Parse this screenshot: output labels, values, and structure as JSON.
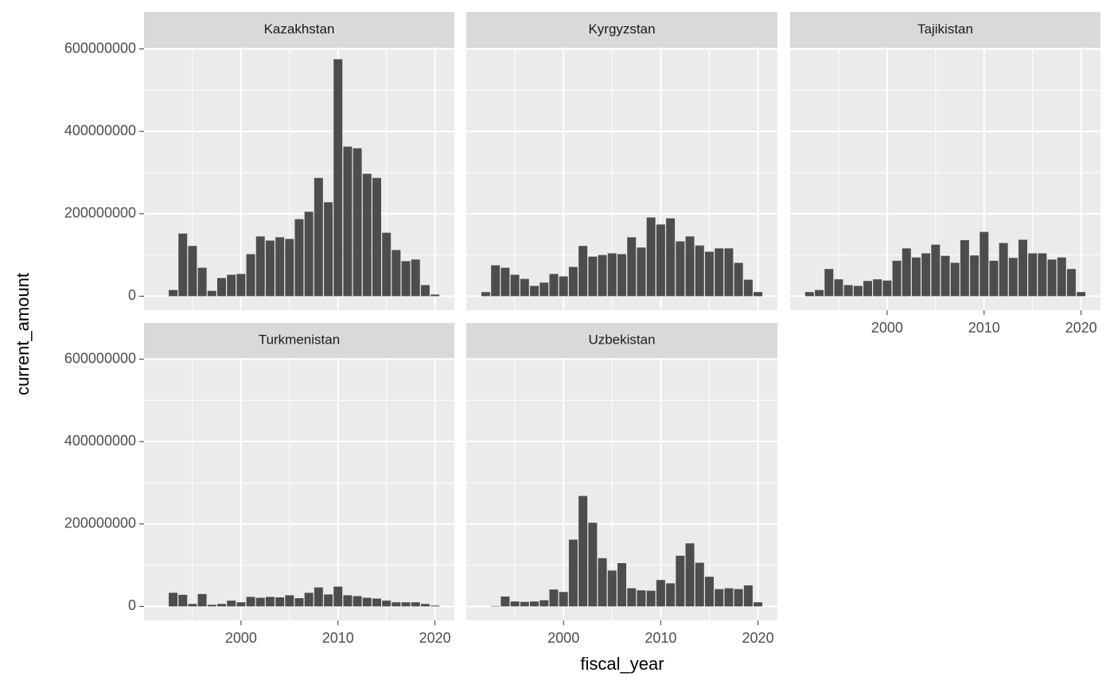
{
  "xlabel": "fiscal_year",
  "ylabel": "current_amount",
  "chart_data": [
    {
      "type": "bar",
      "title": "Kazakhstan",
      "color": "#4d4d4d",
      "grid": true,
      "x": [
        1993,
        1994,
        1995,
        1996,
        1997,
        1998,
        1999,
        2000,
        2001,
        2002,
        2003,
        2004,
        2005,
        2006,
        2007,
        2008,
        2009,
        2010,
        2011,
        2012,
        2013,
        2014,
        2015,
        2016,
        2017,
        2018,
        2019,
        2020
      ],
      "values": [
        15000000,
        152000000,
        122000000,
        69000000,
        13000000,
        44000000,
        52000000,
        54000000,
        102000000,
        145000000,
        135000000,
        143000000,
        139000000,
        187000000,
        205000000,
        287000000,
        228000000,
        575000000,
        363000000,
        359000000,
        297000000,
        287000000,
        154000000,
        112000000,
        85000000,
        89000000,
        27000000,
        4000000
      ],
      "xlim": [
        1990,
        2022
      ],
      "ylim": [
        -34000000,
        603000000
      ],
      "xticks": [
        2000,
        2010,
        2020
      ],
      "yticks": [
        0,
        200000000,
        400000000,
        600000000
      ]
    },
    {
      "type": "bar",
      "title": "Kyrgyzstan",
      "color": "#4d4d4d",
      "grid": true,
      "x": [
        1992,
        1993,
        1994,
        1995,
        1996,
        1997,
        1998,
        1999,
        2000,
        2001,
        2002,
        2003,
        2004,
        2005,
        2006,
        2007,
        2008,
        2009,
        2010,
        2011,
        2012,
        2013,
        2014,
        2015,
        2016,
        2017,
        2018,
        2019,
        2020
      ],
      "values": [
        10000000,
        75000000,
        69000000,
        52000000,
        42000000,
        25000000,
        33000000,
        54000000,
        48000000,
        71000000,
        122000000,
        96000000,
        100000000,
        104000000,
        102000000,
        143000000,
        118000000,
        191000000,
        174000000,
        189000000,
        133000000,
        145000000,
        123000000,
        108000000,
        116000000,
        116000000,
        81000000,
        40000000,
        10000000
      ],
      "xlim": [
        1990,
        2022
      ],
      "ylim": [
        -34000000,
        603000000
      ],
      "xticks": [
        2000,
        2010,
        2020
      ],
      "yticks": [
        0,
        200000000,
        400000000,
        600000000
      ]
    },
    {
      "type": "bar",
      "title": "Tajikistan",
      "color": "#4d4d4d",
      "grid": true,
      "x": [
        1992,
        1993,
        1994,
        1995,
        1996,
        1997,
        1998,
        1999,
        2000,
        2001,
        2002,
        2003,
        2004,
        2005,
        2006,
        2007,
        2008,
        2009,
        2010,
        2011,
        2012,
        2013,
        2014,
        2015,
        2016,
        2017,
        2018,
        2019,
        2020
      ],
      "values": [
        10000000,
        15000000,
        66000000,
        41000000,
        27000000,
        25000000,
        37000000,
        41000000,
        38000000,
        86000000,
        116000000,
        94000000,
        104000000,
        125000000,
        98000000,
        81000000,
        136000000,
        99000000,
        156000000,
        86000000,
        129000000,
        93000000,
        137000000,
        104000000,
        104000000,
        89000000,
        94000000,
        66000000,
        10000000
      ],
      "xlim": [
        1990,
        2022
      ],
      "ylim": [
        -34000000,
        603000000
      ],
      "xticks": [
        2000,
        2010,
        2020
      ],
      "yticks": [
        0,
        200000000,
        400000000,
        600000000
      ]
    },
    {
      "type": "bar",
      "title": "Turkmenistan",
      "color": "#4d4d4d",
      "grid": true,
      "x": [
        1993,
        1994,
        1995,
        1996,
        1997,
        1998,
        1999,
        2000,
        2001,
        2002,
        2003,
        2004,
        2005,
        2006,
        2007,
        2008,
        2009,
        2010,
        2011,
        2012,
        2013,
        2014,
        2015,
        2016,
        2017,
        2018,
        2019,
        2020
      ],
      "values": [
        33000000,
        28000000,
        6000000,
        30000000,
        4000000,
        6000000,
        14000000,
        10000000,
        23000000,
        21000000,
        23000000,
        22000000,
        27000000,
        20000000,
        33000000,
        46000000,
        29000000,
        48000000,
        27000000,
        25000000,
        21000000,
        19000000,
        14000000,
        10000000,
        10000000,
        10000000,
        6000000,
        2000000
      ],
      "xlim": [
        1990,
        2022
      ],
      "ylim": [
        -34000000,
        603000000
      ],
      "xticks": [
        2000,
        2010,
        2020
      ],
      "yticks": [
        0,
        200000000,
        400000000,
        600000000
      ]
    },
    {
      "type": "bar",
      "title": "Uzbekistan",
      "color": "#4d4d4d",
      "grid": true,
      "x": [
        1993,
        1994,
        1995,
        1996,
        1997,
        1998,
        1999,
        2000,
        2001,
        2002,
        2003,
        2004,
        2005,
        2006,
        2007,
        2008,
        2009,
        2010,
        2011,
        2012,
        2013,
        2014,
        2015,
        2016,
        2017,
        2018,
        2019,
        2020
      ],
      "values": [
        1000000,
        24000000,
        12000000,
        11000000,
        12000000,
        15000000,
        41000000,
        35000000,
        162000000,
        268000000,
        203000000,
        117000000,
        87000000,
        105000000,
        44000000,
        39000000,
        38000000,
        64000000,
        56000000,
        123000000,
        153000000,
        106000000,
        72000000,
        42000000,
        44000000,
        42000000,
        51000000,
        10000000
      ],
      "xlim": [
        1990,
        2022
      ],
      "ylim": [
        -34000000,
        603000000
      ],
      "xticks": [
        2000,
        2010,
        2020
      ],
      "yticks": [
        0,
        200000000,
        400000000,
        600000000
      ]
    }
  ]
}
